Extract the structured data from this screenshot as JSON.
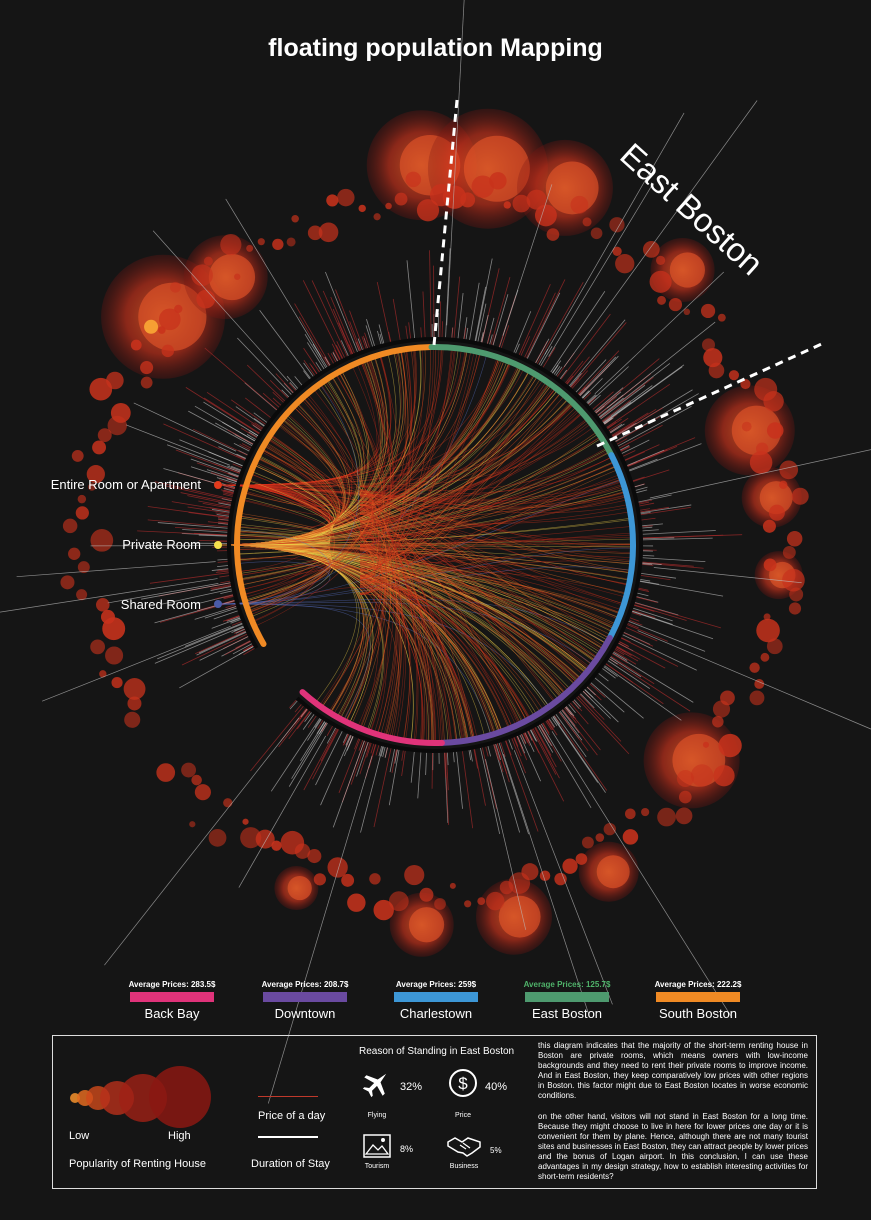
{
  "title": "floating population Mapping",
  "highlight_label": "East Boston",
  "room_types": [
    {
      "label": "Entire Room or Apartment",
      "color": "#e23b1d"
    },
    {
      "label": "Private Room",
      "color": "#f4e04d"
    },
    {
      "label": "Shared Room",
      "color": "#4a5ba8"
    }
  ],
  "neighborhoods": [
    {
      "name": "Back Bay",
      "avg_label": "Average Prices: 283.5$",
      "color": "#e0337a",
      "avg_color": "#ffffff"
    },
    {
      "name": "Downtown",
      "avg_label": "Average Prices: 208.7$",
      "color": "#6a4aa0",
      "avg_color": "#ffffff"
    },
    {
      "name": "Charlestown",
      "avg_label": "Average Prices: 259$",
      "color": "#3d97d6",
      "avg_color": "#ffffff"
    },
    {
      "name": "East Boston",
      "avg_label": "Average Prices: 125.7$",
      "color": "#4e9a6f",
      "avg_color": "#4fb36a"
    },
    {
      "name": "South Boston",
      "avg_label": "Average Prices: 222.2$",
      "color": "#f08a24",
      "avg_color": "#ffffff"
    }
  ],
  "legend": {
    "low": "Low",
    "high": "High",
    "popularity_label": "Popularity of Renting House",
    "price_label": "Price of a day",
    "duration_label": "Duration of Stay",
    "price_line_color": "#c0392b",
    "duration_line_color": "#ffffff"
  },
  "reasons": {
    "heading": "Reason of Standing in East Boston",
    "items": [
      {
        "label": "Flying",
        "value": "32%",
        "icon": "airplane-icon"
      },
      {
        "label": "Price",
        "value": "40%",
        "icon": "dollar-icon"
      },
      {
        "label": "Tourism",
        "value": "8%",
        "icon": "picture-icon"
      },
      {
        "label": "Business",
        "value": "5%",
        "icon": "handshake-icon"
      }
    ]
  },
  "paragraphs": [
    "this diagram indicates that the majority of the short-term renting house in Boston are private rooms, which means owners with low-income backgrounds and they need to rent their private rooms to improve income. And in East Boston, they keep comparatively low prices with other regions in Boston. this factor might due to East Boston locates in worse economic conditions.",
    "on the other hand, visitors will not stand in East Boston for a long time. Because they might choose to live in here for lower prices one day or it is convenient for them by plane. Hence, although there are not many tourist sites and businesses in East Boston, they can attract people by lower prices and the bonus of Logan airport. In this conclusion, I can use these advantages in my design strategy, how to establish interesting activities for short-term residents?"
  ]
}
